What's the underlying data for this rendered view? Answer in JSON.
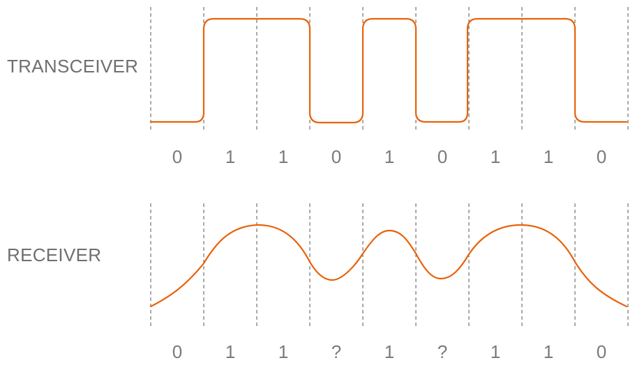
{
  "rows": {
    "transceiver": {
      "label": "TRANSCEIVER",
      "bits": [
        "0",
        "1",
        "1",
        "0",
        "1",
        "0",
        "1",
        "1",
        "0"
      ]
    },
    "receiver": {
      "label": "RECEIVER",
      "bits": [
        "0",
        "1",
        "1",
        "?",
        "1",
        "?",
        "1",
        "1",
        "0"
      ]
    }
  },
  "colors": {
    "signal": "#e8620a",
    "divider": "#555555",
    "text": "#6f6f6f"
  }
}
